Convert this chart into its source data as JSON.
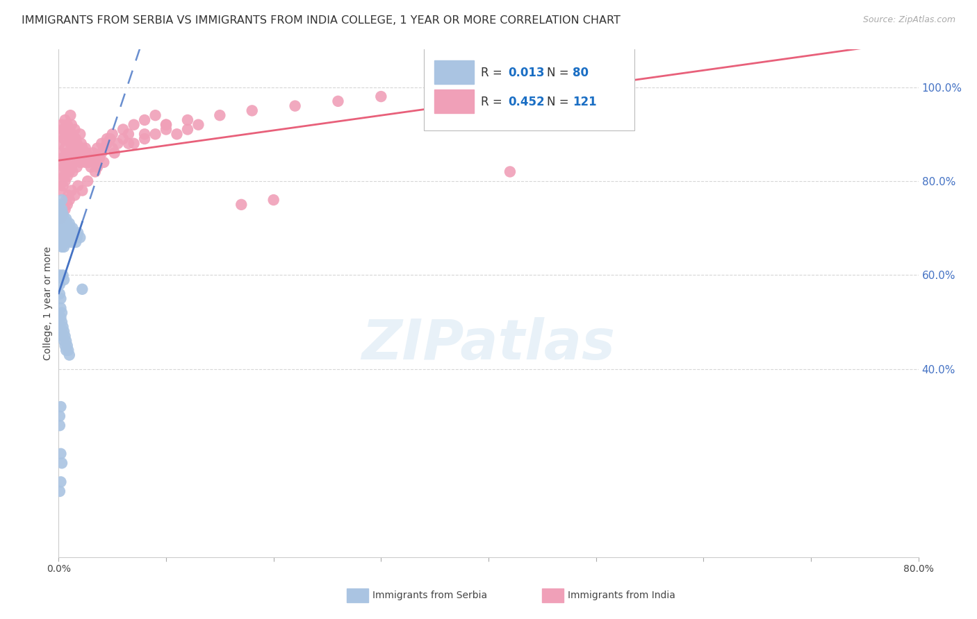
{
  "title": "IMMIGRANTS FROM SERBIA VS IMMIGRANTS FROM INDIA COLLEGE, 1 YEAR OR MORE CORRELATION CHART",
  "source": "Source: ZipAtlas.com",
  "ylabel": "College, 1 year or more",
  "xlim": [
    0.0,
    0.8
  ],
  "ylim": [
    0.0,
    1.08
  ],
  "xticklabels": [
    "0.0%",
    "",
    "",
    "",
    "",
    "",
    "",
    "",
    "80.0%"
  ],
  "xtick_vals": [
    0.0,
    0.1,
    0.2,
    0.3,
    0.4,
    0.5,
    0.6,
    0.7,
    0.8
  ],
  "ytick_positions": [
    0.4,
    0.6,
    0.8,
    1.0
  ],
  "ytick_labels": [
    "40.0%",
    "60.0%",
    "80.0%",
    "100.0%"
  ],
  "serbia_R": "0.013",
  "serbia_N": "80",
  "india_R": "0.452",
  "india_N": "121",
  "serbia_color": "#aac4e2",
  "india_color": "#f0a0b8",
  "serbia_line_color": "#4472c4",
  "india_line_color": "#e8607a",
  "watermark": "ZIPatlas",
  "legend_serbia": "Immigrants from Serbia",
  "legend_india": "Immigrants from India",
  "background_color": "#ffffff",
  "grid_color": "#cccccc",
  "title_fontsize": 11.5,
  "axis_label_fontsize": 10,
  "tick_fontsize": 10,
  "source_fontsize": 9,
  "serbia_x": [
    0.001,
    0.001,
    0.001,
    0.001,
    0.001,
    0.002,
    0.002,
    0.002,
    0.002,
    0.002,
    0.002,
    0.002,
    0.003,
    0.003,
    0.003,
    0.003,
    0.003,
    0.003,
    0.004,
    0.004,
    0.004,
    0.004,
    0.005,
    0.005,
    0.005,
    0.005,
    0.006,
    0.006,
    0.006,
    0.007,
    0.007,
    0.007,
    0.008,
    0.008,
    0.008,
    0.009,
    0.009,
    0.01,
    0.01,
    0.011,
    0.011,
    0.012,
    0.012,
    0.013,
    0.014,
    0.015,
    0.016,
    0.017,
    0.018,
    0.02,
    0.001,
    0.001,
    0.001,
    0.002,
    0.002,
    0.002,
    0.003,
    0.003,
    0.003,
    0.004,
    0.004,
    0.005,
    0.005,
    0.006,
    0.006,
    0.007,
    0.007,
    0.008,
    0.009,
    0.01,
    0.001,
    0.001,
    0.002,
    0.002,
    0.003,
    0.004,
    0.005,
    0.022,
    0.001,
    0.002
  ],
  "serbia_y": [
    0.72,
    0.74,
    0.7,
    0.68,
    0.75,
    0.73,
    0.71,
    0.69,
    0.67,
    0.72,
    0.7,
    0.68,
    0.76,
    0.74,
    0.72,
    0.7,
    0.68,
    0.66,
    0.73,
    0.71,
    0.69,
    0.67,
    0.72,
    0.7,
    0.68,
    0.66,
    0.71,
    0.69,
    0.67,
    0.72,
    0.7,
    0.68,
    0.71,
    0.69,
    0.67,
    0.7,
    0.68,
    0.71,
    0.69,
    0.7,
    0.68,
    0.69,
    0.67,
    0.7,
    0.69,
    0.68,
    0.67,
    0.68,
    0.69,
    0.68,
    0.6,
    0.58,
    0.56,
    0.55,
    0.53,
    0.51,
    0.52,
    0.5,
    0.48,
    0.49,
    0.47,
    0.48,
    0.46,
    0.47,
    0.45,
    0.46,
    0.44,
    0.45,
    0.44,
    0.43,
    0.3,
    0.28,
    0.32,
    0.22,
    0.2,
    0.6,
    0.59,
    0.57,
    0.14,
    0.16
  ],
  "india_x": [
    0.001,
    0.001,
    0.002,
    0.002,
    0.003,
    0.003,
    0.004,
    0.004,
    0.005,
    0.005,
    0.006,
    0.006,
    0.007,
    0.007,
    0.008,
    0.008,
    0.009,
    0.009,
    0.01,
    0.01,
    0.011,
    0.011,
    0.012,
    0.012,
    0.013,
    0.014,
    0.015,
    0.015,
    0.016,
    0.017,
    0.018,
    0.019,
    0.02,
    0.02,
    0.021,
    0.022,
    0.023,
    0.024,
    0.025,
    0.026,
    0.027,
    0.028,
    0.03,
    0.032,
    0.034,
    0.036,
    0.038,
    0.04,
    0.042,
    0.045,
    0.048,
    0.05,
    0.055,
    0.06,
    0.065,
    0.07,
    0.08,
    0.09,
    0.1,
    0.11,
    0.12,
    0.13,
    0.002,
    0.003,
    0.004,
    0.005,
    0.006,
    0.007,
    0.008,
    0.009,
    0.01,
    0.011,
    0.012,
    0.013,
    0.015,
    0.017,
    0.019,
    0.021,
    0.023,
    0.025,
    0.028,
    0.032,
    0.036,
    0.04,
    0.045,
    0.05,
    0.06,
    0.07,
    0.08,
    0.09,
    0.1,
    0.12,
    0.15,
    0.18,
    0.22,
    0.26,
    0.3,
    0.35,
    0.17,
    0.2,
    0.002,
    0.003,
    0.004,
    0.005,
    0.006,
    0.007,
    0.008,
    0.009,
    0.01,
    0.012,
    0.015,
    0.018,
    0.022,
    0.027,
    0.034,
    0.042,
    0.052,
    0.065,
    0.08,
    0.1,
    0.42
  ],
  "india_y": [
    0.88,
    0.82,
    0.9,
    0.84,
    0.92,
    0.86,
    0.91,
    0.85,
    0.89,
    0.83,
    0.93,
    0.87,
    0.9,
    0.84,
    0.92,
    0.86,
    0.91,
    0.85,
    0.89,
    0.83,
    0.94,
    0.88,
    0.92,
    0.86,
    0.9,
    0.87,
    0.91,
    0.85,
    0.89,
    0.88,
    0.87,
    0.86,
    0.9,
    0.84,
    0.88,
    0.87,
    0.86,
    0.85,
    0.84,
    0.86,
    0.85,
    0.84,
    0.83,
    0.85,
    0.84,
    0.83,
    0.85,
    0.86,
    0.87,
    0.88,
    0.89,
    0.87,
    0.88,
    0.89,
    0.9,
    0.88,
    0.89,
    0.9,
    0.91,
    0.9,
    0.91,
    0.92,
    0.78,
    0.8,
    0.79,
    0.81,
    0.8,
    0.82,
    0.81,
    0.83,
    0.82,
    0.84,
    0.83,
    0.82,
    0.84,
    0.83,
    0.85,
    0.84,
    0.86,
    0.87,
    0.85,
    0.86,
    0.87,
    0.88,
    0.89,
    0.9,
    0.91,
    0.92,
    0.93,
    0.94,
    0.92,
    0.93,
    0.94,
    0.95,
    0.96,
    0.97,
    0.98,
    0.99,
    0.75,
    0.76,
    0.72,
    0.74,
    0.73,
    0.75,
    0.74,
    0.76,
    0.75,
    0.77,
    0.76,
    0.78,
    0.77,
    0.79,
    0.78,
    0.8,
    0.82,
    0.84,
    0.86,
    0.88,
    0.9,
    0.92,
    0.82
  ]
}
